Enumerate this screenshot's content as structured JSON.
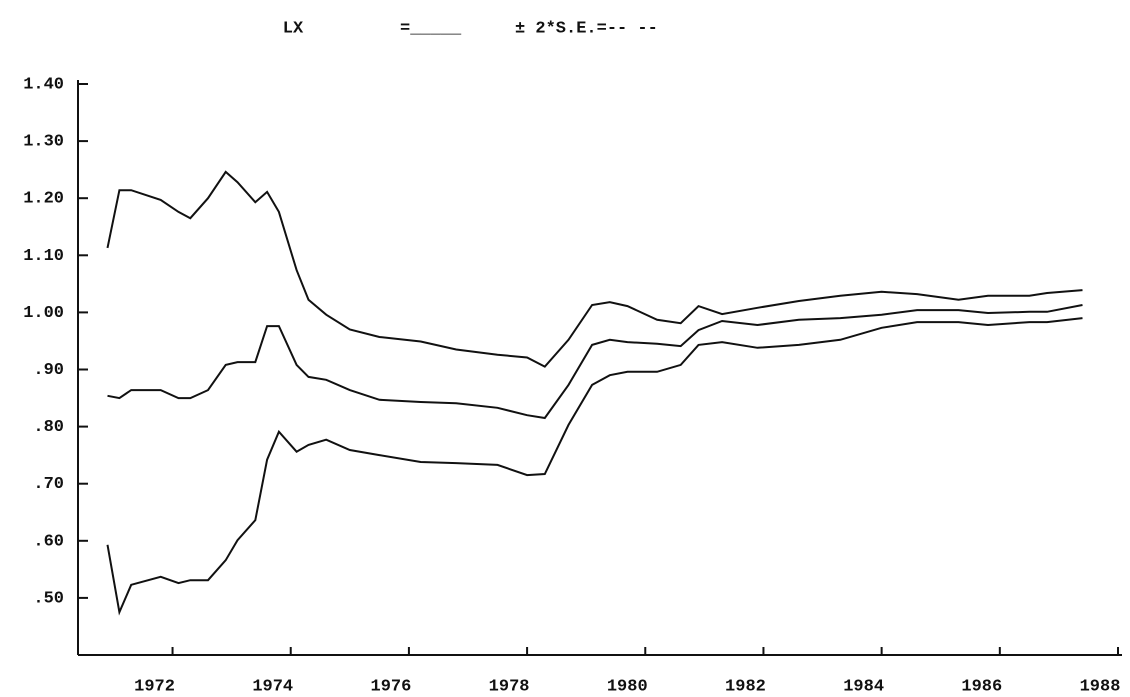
{
  "chart_data": {
    "type": "line",
    "title": "LX",
    "subtitle": "=_____",
    "annotation": "± 2*S.E.=-- --",
    "x": [
      1970.9,
      1971.1,
      1971.3,
      1971.8,
      1972.1,
      1972.3,
      1972.6,
      1972.9,
      1973.1,
      1973.4,
      1973.6,
      1973.8,
      1974.1,
      1974.3,
      1974.6,
      1975.0,
      1975.5,
      1976.2,
      1976.8,
      1977.5,
      1978.0,
      1978.3,
      1978.7,
      1979.1,
      1979.4,
      1979.7,
      1980.2,
      1980.6,
      1980.9,
      1981.3,
      1981.9,
      1982.6,
      1983.3,
      1984.0,
      1984.6,
      1985.3,
      1985.8,
      1986.5,
      1986.8,
      1987.4
    ],
    "series": [
      {
        "color": "#111111",
        "values": [
          1.113,
          1.214,
          1.214,
          1.197,
          1.176,
          1.165,
          1.2,
          1.246,
          1.228,
          1.193,
          1.211,
          1.176,
          1.074,
          1.022,
          0.996,
          0.97,
          0.957,
          0.949,
          0.935,
          0.926,
          0.921,
          0.905,
          0.952,
          1.013,
          1.018,
          1.011,
          0.987,
          0.981,
          1.011,
          0.997,
          1.008,
          1.02,
          1.029,
          1.036,
          1.032,
          1.022,
          1.029,
          1.029,
          1.034,
          1.039
        ]
      },
      {
        "color": "#111111",
        "values": [
          0.854,
          0.85,
          0.864,
          0.864,
          0.85,
          0.85,
          0.864,
          0.908,
          0.913,
          0.913,
          0.976,
          0.976,
          0.908,
          0.887,
          0.882,
          0.864,
          0.847,
          0.843,
          0.841,
          0.833,
          0.82,
          0.815,
          0.873,
          0.943,
          0.952,
          0.948,
          0.945,
          0.941,
          0.969,
          0.985,
          0.978,
          0.987,
          0.99,
          0.996,
          1.004,
          1.004,
          0.999,
          1.001,
          1.001,
          1.013
        ]
      },
      {
        "color": "#111111",
        "values": [
          0.593,
          0.475,
          0.523,
          0.537,
          0.526,
          0.531,
          0.531,
          0.566,
          0.601,
          0.636,
          0.742,
          0.791,
          0.756,
          0.768,
          0.777,
          0.759,
          0.75,
          0.738,
          0.736,
          0.733,
          0.715,
          0.717,
          0.803,
          0.873,
          0.89,
          0.896,
          0.896,
          0.908,
          0.943,
          0.948,
          0.938,
          0.943,
          0.952,
          0.973,
          0.983,
          0.983,
          0.978,
          0.983,
          0.983,
          0.99
        ]
      }
    ],
    "xlim": [
      1970.4,
      1988
    ],
    "xticks": [
      1972,
      1974,
      1976,
      1978,
      1980,
      1982,
      1984,
      1986,
      1988
    ],
    "ylim": [
      0.4,
      1.4
    ],
    "yticks": [
      {
        "value": 0.5,
        "label": ".50"
      },
      {
        "value": 0.6,
        "label": ".60"
      },
      {
        "value": 0.7,
        "label": ".70"
      },
      {
        "value": 0.8,
        "label": ".80"
      },
      {
        "value": 0.9,
        "label": ".90"
      },
      {
        "value": 1.0,
        "label": "1.00"
      },
      {
        "value": 1.1,
        "label": "1.10"
      },
      {
        "value": 1.2,
        "label": "1.20"
      },
      {
        "value": 1.3,
        "label": "1.30"
      },
      {
        "value": 1.4,
        "label": "1.40"
      }
    ],
    "grid": false
  }
}
